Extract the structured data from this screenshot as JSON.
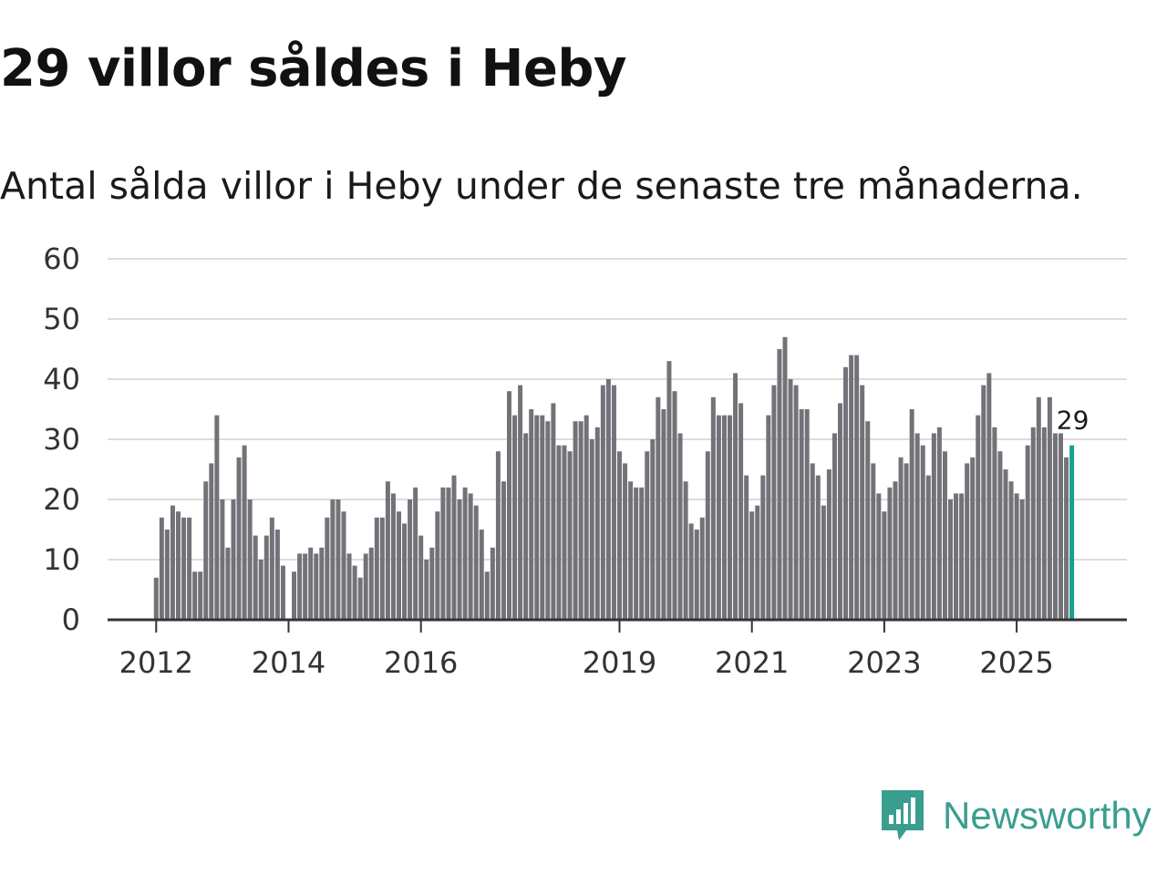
{
  "title": "29 villor såldes i Heby",
  "subtitle": "Antal sålda villor i Heby under de senaste tre månaderna.",
  "brand": {
    "name": "Newsworthy",
    "icon": "newsworthy-logo-icon",
    "color": "#3a9e8f"
  },
  "colors": {
    "bar": "#747278",
    "highlight": "#1a9e8f",
    "grid": "#dddddd",
    "axis": "#333333"
  },
  "chart_data": {
    "type": "bar",
    "title": "29 villor såldes i Heby",
    "xlabel": "",
    "ylabel": "",
    "ylim": [
      0,
      60
    ],
    "yticks": [
      0,
      10,
      20,
      30,
      40,
      50,
      60
    ],
    "grid": true,
    "start": {
      "year": 2012,
      "month": 1
    },
    "x_tick_labels": [
      {
        "label": "2012",
        "index": 0
      },
      {
        "label": "2014",
        "index": 24
      },
      {
        "label": "2016",
        "index": 48
      },
      {
        "label": "2019",
        "index": 84
      },
      {
        "label": "2021",
        "index": 108
      },
      {
        "label": "2023",
        "index": 132
      },
      {
        "label": "2025",
        "index": 156
      }
    ],
    "values": [
      7,
      17,
      15,
      19,
      18,
      17,
      17,
      8,
      8,
      23,
      26,
      34,
      20,
      12,
      20,
      27,
      29,
      20,
      14,
      10,
      14,
      17,
      15,
      9,
      0,
      8,
      11,
      11,
      12,
      11,
      12,
      17,
      20,
      20,
      18,
      11,
      9,
      7,
      11,
      12,
      17,
      17,
      23,
      21,
      18,
      16,
      20,
      22,
      14,
      10,
      12,
      18,
      22,
      22,
      24,
      20,
      22,
      21,
      19,
      15,
      8,
      12,
      28,
      23,
      38,
      34,
      39,
      31,
      35,
      34,
      34,
      33,
      36,
      29,
      29,
      28,
      33,
      33,
      34,
      30,
      32,
      39,
      40,
      39,
      28,
      26,
      23,
      22,
      22,
      28,
      30,
      37,
      35,
      43,
      38,
      31,
      23,
      16,
      15,
      17,
      28,
      37,
      34,
      34,
      34,
      41,
      36,
      24,
      18,
      19,
      24,
      34,
      39,
      45,
      47,
      40,
      39,
      35,
      35,
      26,
      24,
      19,
      25,
      31,
      36,
      42,
      44,
      44,
      39,
      33,
      26,
      21,
      18,
      22,
      23,
      27,
      26,
      35,
      31,
      29,
      24,
      31,
      32,
      28,
      20,
      21,
      21,
      26,
      27,
      34,
      39,
      41,
      32,
      28,
      25,
      23,
      21,
      20,
      29,
      32,
      37,
      32,
      37,
      31,
      31,
      27,
      29
    ],
    "highlight": {
      "index": 166,
      "value": 29,
      "label": "29"
    }
  }
}
